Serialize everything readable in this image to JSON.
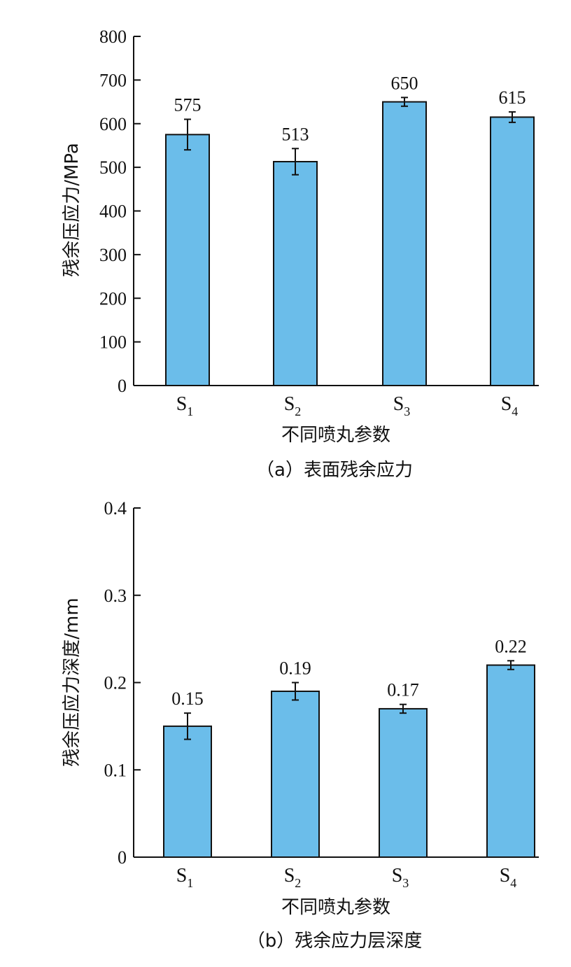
{
  "bar_color": "#6BBDEA",
  "chart_data": [
    {
      "type": "bar",
      "caption": "（a）表面残余应力",
      "xlabel": "不同喷丸参数",
      "ylabel": "残余压应力/MPa",
      "ylim": [
        0,
        800
      ],
      "yticks": [
        0,
        100,
        200,
        300,
        400,
        500,
        600,
        700,
        800
      ],
      "ytick_labels": [
        "0",
        "100",
        "200",
        "300",
        "400",
        "500",
        "600",
        "700",
        "800"
      ],
      "categories": [
        {
          "main": "S",
          "sub": "1"
        },
        {
          "main": "S",
          "sub": "2"
        },
        {
          "main": "S",
          "sub": "3"
        },
        {
          "main": "S",
          "sub": "4"
        }
      ],
      "values": [
        575,
        513,
        650,
        615
      ],
      "value_labels": [
        "575",
        "513",
        "650",
        "615"
      ],
      "errors": [
        35,
        30,
        10,
        12
      ]
    },
    {
      "type": "bar",
      "caption": "（b）残余应力层深度",
      "xlabel": "不同喷丸参数",
      "ylabel": "残余压应力深度/mm",
      "ylim": [
        0,
        0.4
      ],
      "yticks": [
        0,
        0.1,
        0.2,
        0.3,
        0.4
      ],
      "ytick_labels": [
        "0",
        "0.1",
        "0.2",
        "0.3",
        "0.4"
      ],
      "categories": [
        {
          "main": "S",
          "sub": "1"
        },
        {
          "main": "S",
          "sub": "2"
        },
        {
          "main": "S",
          "sub": "3"
        },
        {
          "main": "S",
          "sub": "4"
        }
      ],
      "values": [
        0.15,
        0.19,
        0.17,
        0.22
      ],
      "value_labels": [
        "0.15",
        "0.19",
        "0.17",
        "0.22"
      ],
      "errors": [
        0.015,
        0.01,
        0.005,
        0.005
      ]
    }
  ]
}
